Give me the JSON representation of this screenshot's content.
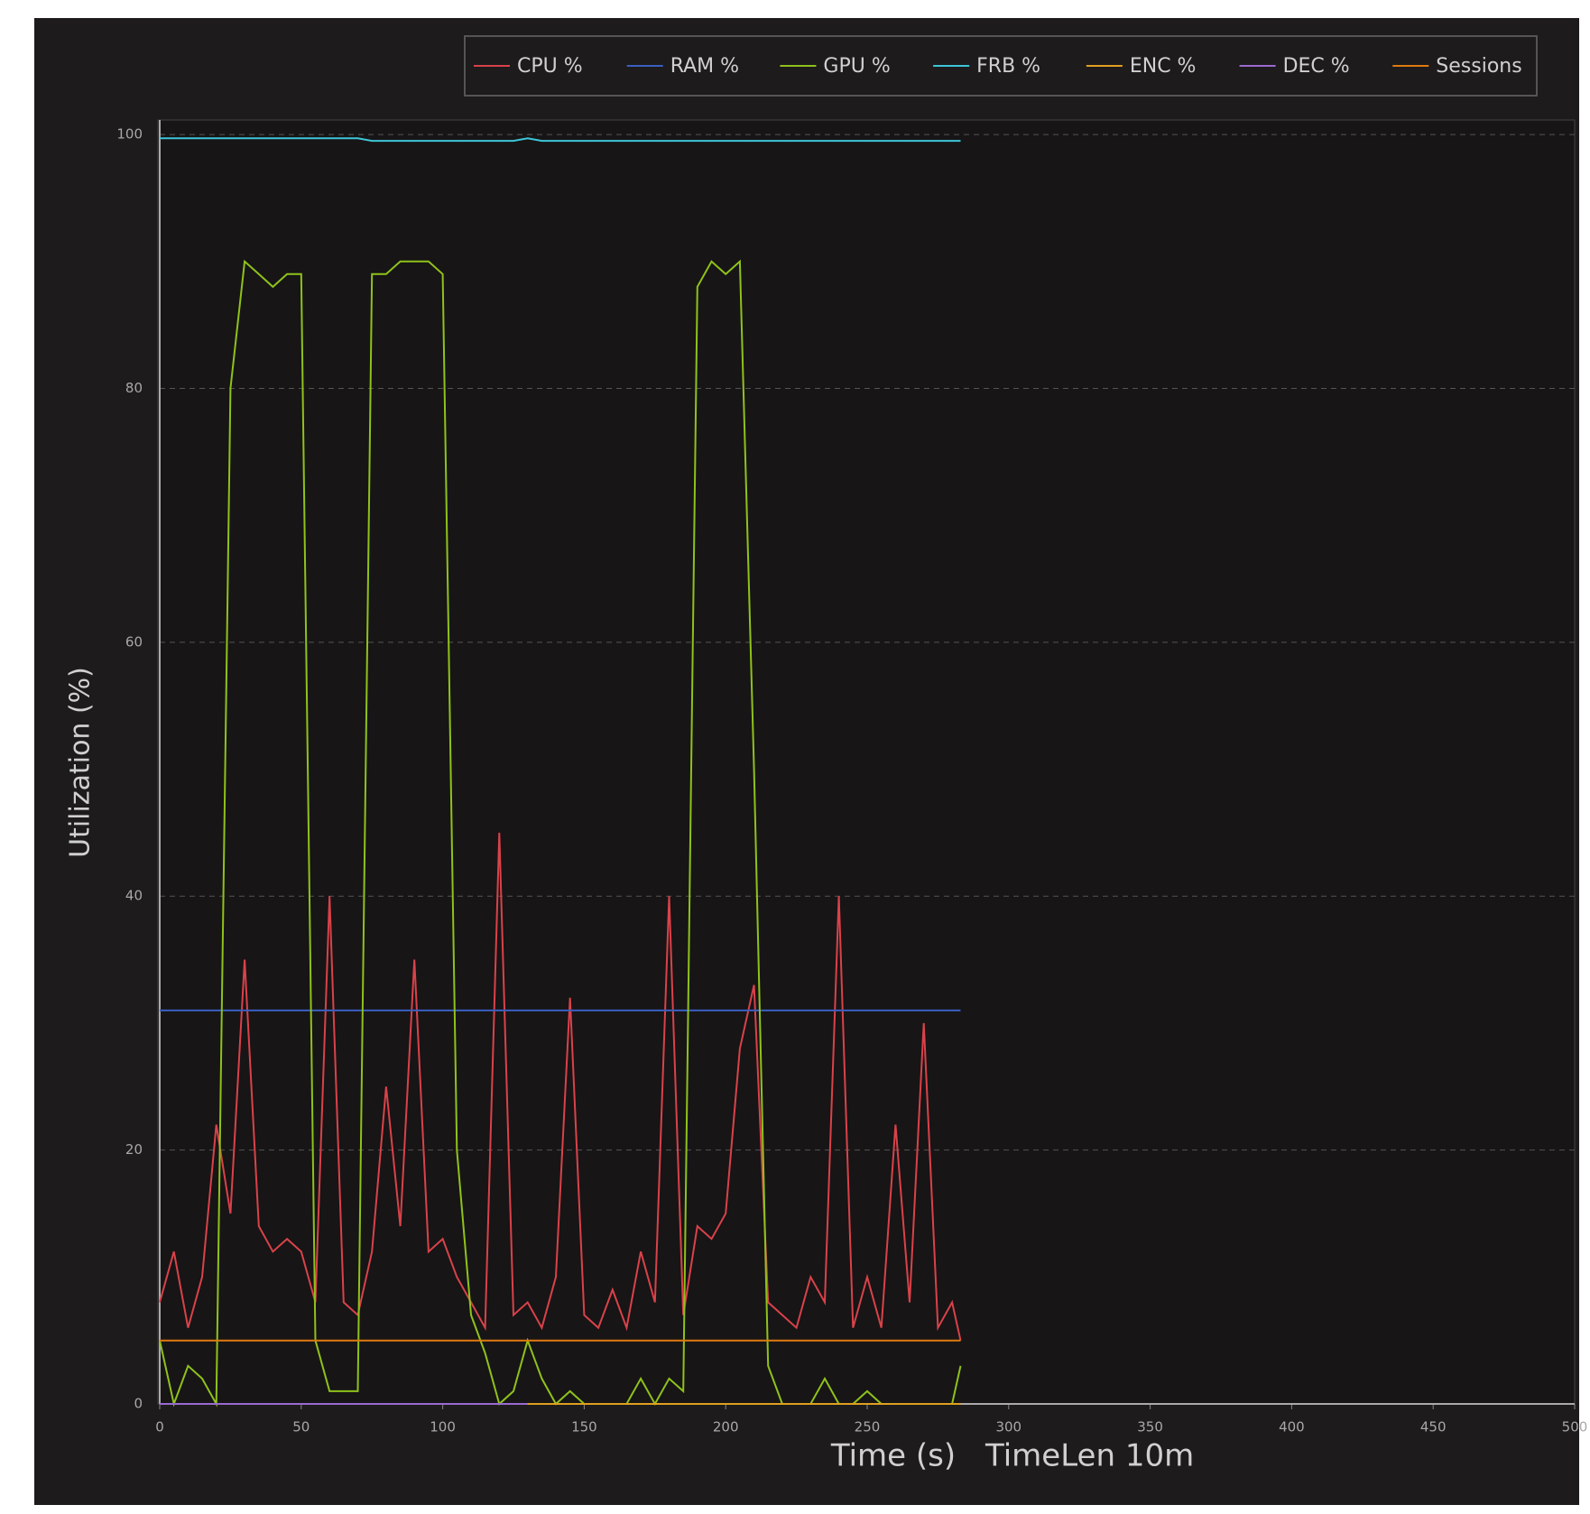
{
  "chart_data": {
    "type": "line",
    "ylabel": "Utilization (%)",
    "xlabel": "Time (s)",
    "annotation": "TimeLen 10m",
    "x": [
      0,
      5,
      10,
      15,
      20,
      25,
      30,
      35,
      40,
      45,
      50,
      55,
      60,
      65,
      70,
      75,
      80,
      85,
      90,
      95,
      100,
      105,
      110,
      115,
      120,
      125,
      130,
      135,
      140,
      145,
      150,
      155,
      160,
      165,
      170,
      175,
      180,
      185,
      190,
      195,
      200,
      205,
      210,
      215,
      220,
      225,
      230,
      235,
      240,
      245,
      250,
      255,
      260,
      265,
      270,
      275,
      280,
      283
    ],
    "series": [
      {
        "name": "CPU %",
        "color": "#d9424a",
        "values": [
          8,
          12,
          6,
          10,
          22,
          15,
          35,
          14,
          12,
          13,
          12,
          8,
          40,
          8,
          7,
          12,
          25,
          14,
          35,
          12,
          13,
          10,
          8,
          6,
          45,
          7,
          8,
          6,
          10,
          32,
          7,
          6,
          9,
          6,
          12,
          8,
          40,
          7,
          14,
          13,
          15,
          28,
          33,
          8,
          7,
          6,
          10,
          8,
          40,
          6,
          10,
          6,
          22,
          8,
          30,
          6,
          8,
          5
        ]
      },
      {
        "name": "RAM %",
        "color": "#3a5fc0",
        "values": [
          31,
          31,
          31,
          31,
          31,
          31,
          31,
          31,
          31,
          31,
          31,
          31,
          31,
          31,
          31,
          31,
          31,
          31,
          31,
          31,
          31,
          31,
          31,
          31,
          31,
          31,
          31,
          31,
          31,
          31,
          31,
          31,
          31,
          31,
          31,
          31,
          31,
          31,
          31,
          31,
          31,
          31,
          31,
          31,
          31,
          31,
          31,
          31,
          31,
          31,
          31,
          31,
          31,
          31,
          31,
          31,
          31,
          31
        ]
      },
      {
        "name": "GPU %",
        "color": "#8fc21a",
        "values": [
          5,
          0,
          3,
          2,
          0,
          80,
          90,
          89,
          88,
          89,
          89,
          5,
          1,
          1,
          1,
          89,
          89,
          90,
          90,
          90,
          89,
          20,
          7,
          4,
          0,
          1,
          5,
          2,
          0,
          1,
          0,
          0,
          0,
          0,
          2,
          0,
          2,
          1,
          88,
          90,
          89,
          90,
          50,
          3,
          0,
          0,
          0,
          2,
          0,
          0,
          1,
          0,
          0,
          0,
          0,
          0,
          0,
          3
        ]
      },
      {
        "name": "FRB %",
        "color": "#3ec6d8",
        "values": [
          99.7,
          99.7,
          99.7,
          99.7,
          99.7,
          99.7,
          99.7,
          99.7,
          99.7,
          99.7,
          99.7,
          99.7,
          99.7,
          99.7,
          99.7,
          99.5,
          99.5,
          99.5,
          99.5,
          99.5,
          99.5,
          99.5,
          99.5,
          99.5,
          99.5,
          99.5,
          99.7,
          99.5,
          99.5,
          99.5,
          99.5,
          99.5,
          99.5,
          99.5,
          99.5,
          99.5,
          99.5,
          99.5,
          99.5,
          99.5,
          99.5,
          99.5,
          99.5,
          99.5,
          99.5,
          99.5,
          99.5,
          99.5,
          99.5,
          99.5,
          99.5,
          99.5,
          99.5,
          99.5,
          99.5,
          99.5,
          99.5,
          99.5
        ]
      },
      {
        "name": "ENC %",
        "color": "#e0a020",
        "values": [
          0,
          0,
          0,
          0,
          0,
          0,
          0,
          0,
          0,
          0,
          0,
          0,
          0,
          0,
          0,
          0,
          0,
          0,
          0,
          0,
          0,
          0,
          0,
          0,
          0,
          0,
          0,
          0,
          0,
          0,
          0,
          0,
          0,
          0,
          0,
          0,
          0,
          0,
          0,
          0,
          0,
          0,
          0,
          0,
          0,
          0,
          0,
          0,
          0,
          0,
          0,
          0,
          0,
          0,
          0,
          0,
          0,
          0
        ]
      },
      {
        "name": "DEC %",
        "color": "#9a6ad0",
        "values": [
          0,
          0,
          0,
          0,
          0,
          0,
          0,
          0,
          0,
          0,
          0,
          0,
          0,
          0,
          0,
          0,
          0,
          0,
          0,
          0,
          0,
          0,
          0,
          0,
          0,
          0,
          0,
          null,
          null,
          null,
          null,
          null,
          null,
          null,
          null,
          null,
          null,
          null,
          null,
          null,
          null,
          null,
          null,
          null,
          null,
          null,
          null,
          null,
          null,
          null,
          null,
          null,
          null,
          null,
          null,
          null,
          null,
          null
        ]
      },
      {
        "name": "Sessions",
        "color": "#e07a10",
        "values": [
          5,
          5,
          5,
          5,
          5,
          5,
          5,
          5,
          5,
          5,
          5,
          5,
          5,
          5,
          5,
          5,
          5,
          5,
          5,
          5,
          5,
          5,
          5,
          5,
          5,
          5,
          5,
          5,
          5,
          5,
          5,
          5,
          5,
          5,
          5,
          5,
          5,
          5,
          5,
          5,
          5,
          5,
          5,
          5,
          5,
          5,
          5,
          5,
          5,
          5,
          5,
          5,
          5,
          5,
          5,
          5,
          5,
          5
        ]
      }
    ],
    "xlim": [
      0,
      500
    ],
    "xticks": [
      0,
      50,
      100,
      150,
      200,
      250,
      300,
      350,
      400,
      450,
      500
    ],
    "ylim": [
      0,
      101
    ],
    "yticks": [
      0,
      20,
      40,
      60,
      80,
      100
    ],
    "grid": true
  }
}
